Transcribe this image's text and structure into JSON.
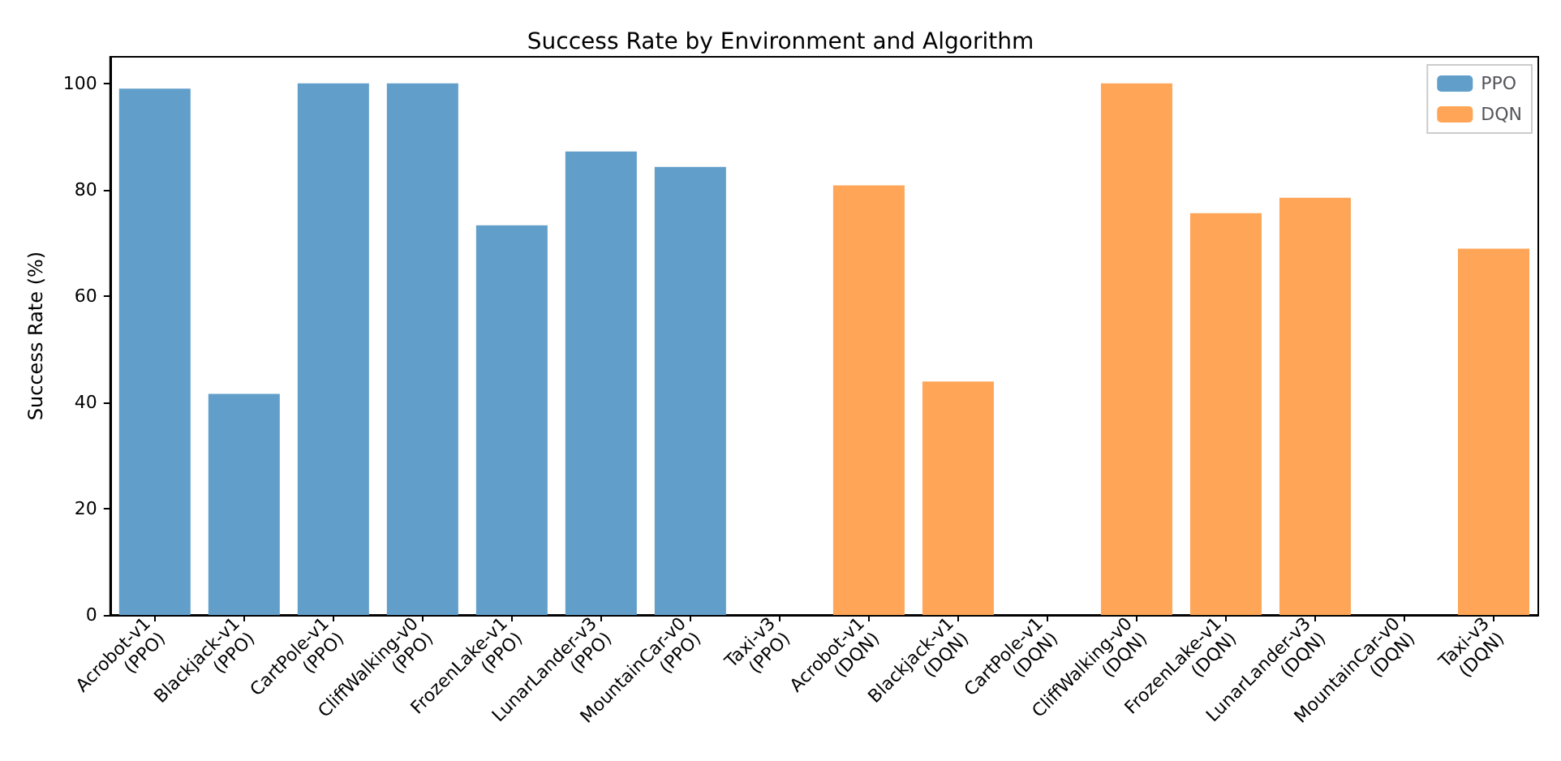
{
  "chart_data": {
    "type": "bar",
    "title": "Success Rate by Environment and Algorithm",
    "ylabel": "Success Rate (%)",
    "categories": [
      "Acrobot-v1\n(PPO)",
      "Blackjack-v1\n(PPO)",
      "CartPole-v1\n(PPO)",
      "CliffWalking-v0\n(PPO)",
      "FrozenLake-v1\n(PPO)",
      "LunarLander-v3\n(PPO)",
      "MountainCar-v0\n(PPO)",
      "Taxi-v3\n(PPO)",
      "Acrobot-v1\n(DQN)",
      "Blackjack-v1\n(DQN)",
      "CartPole-v1\n(DQN)",
      "CliffWalking-v0\n(DQN)",
      "FrozenLake-v1\n(DQN)",
      "LunarLander-v3\n(DQN)",
      "MountainCar-v0\n(DQN)",
      "Taxi-v3\n(DQN)"
    ],
    "series": [
      {
        "name": "PPO",
        "color": "#619fca",
        "values": [
          99,
          41.6,
          100,
          100,
          73.3,
          87.2,
          84.3,
          0,
          null,
          null,
          null,
          null,
          null,
          null,
          null,
          null
        ]
      },
      {
        "name": "DQN",
        "color": "#ffa557",
        "values": [
          null,
          null,
          null,
          null,
          null,
          null,
          null,
          null,
          80.8,
          43.9,
          0,
          100,
          75.6,
          78.5,
          0,
          68.9
        ]
      }
    ],
    "ylim": [
      0,
      105
    ],
    "yticks": [
      0,
      20,
      40,
      60,
      80,
      100
    ],
    "grid": false,
    "legend": "top right"
  }
}
